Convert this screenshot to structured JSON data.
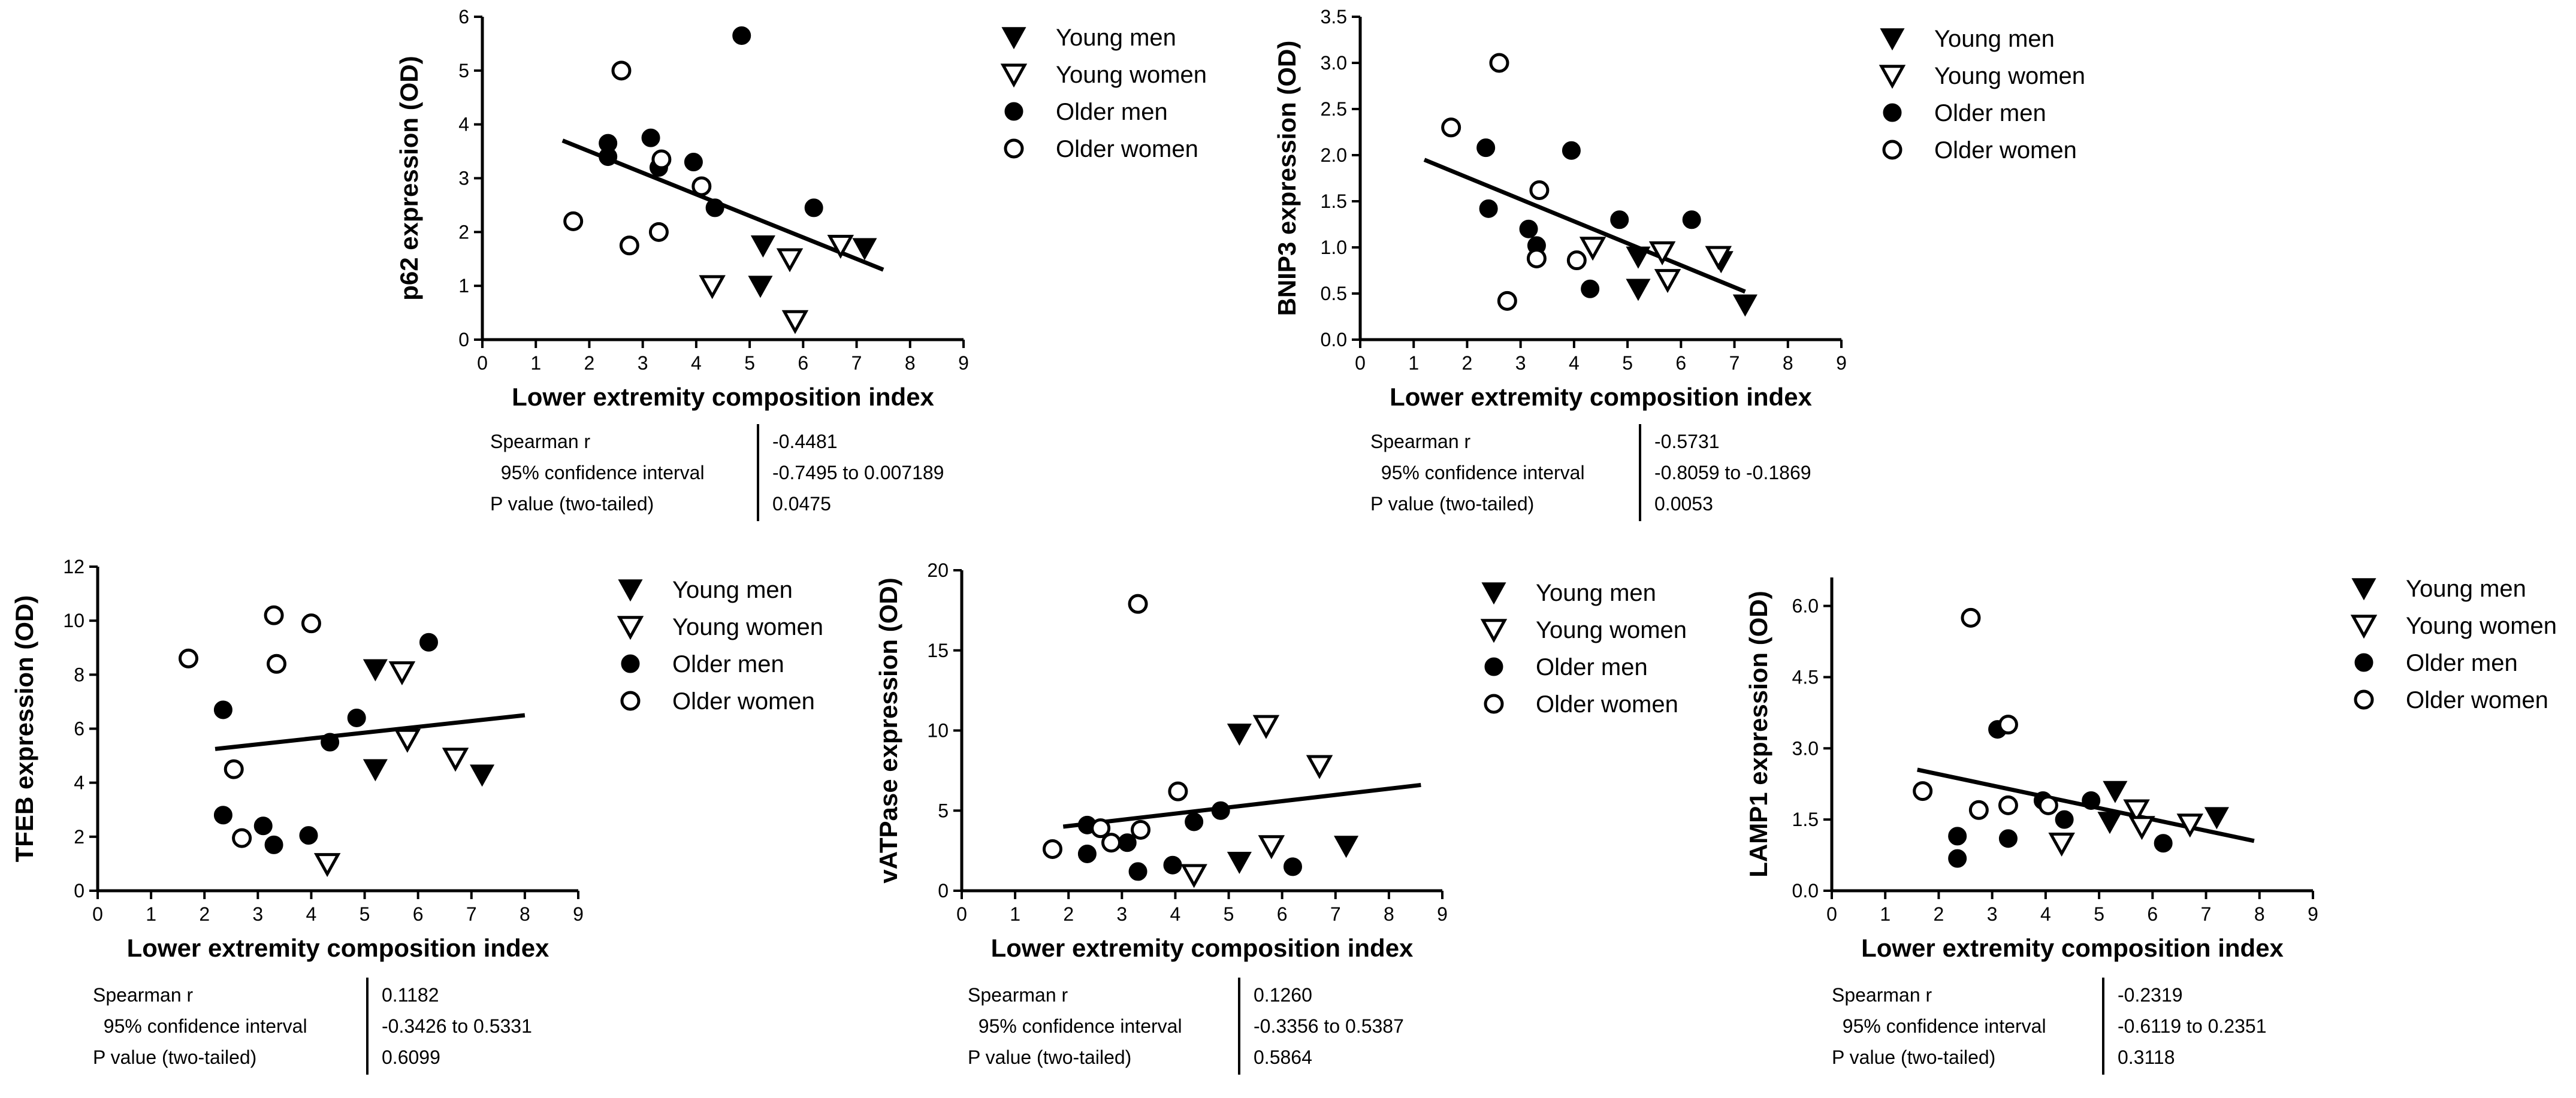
{
  "chart_data": [
    {
      "type": "scatter",
      "title": "",
      "xlabel": "Lower extremity composition index",
      "ylabel": "p62 expression (OD)",
      "xlim": [
        0,
        9
      ],
      "ylim": [
        0,
        6
      ],
      "x_ticks": [
        "0",
        "1",
        "2",
        "3",
        "4",
        "5",
        "6",
        "7",
        "8",
        "9"
      ],
      "y_ticks": [
        "0",
        "1",
        "2",
        "3",
        "4",
        "5",
        "6"
      ],
      "series": [
        {
          "name": "Young men",
          "marker": "triangle-down-filled",
          "points": [
            [
              5.25,
              1.75
            ],
            [
              7.15,
              1.7
            ],
            [
              5.2,
              1.0
            ]
          ]
        },
        {
          "name": "Young women",
          "marker": "triangle-down-open",
          "points": [
            [
              6.7,
              1.75
            ],
            [
              5.75,
              1.5
            ],
            [
              4.3,
              1.0
            ],
            [
              5.85,
              0.35
            ]
          ]
        },
        {
          "name": "Older men",
          "marker": "circle-filled",
          "points": [
            [
              4.85,
              5.65
            ],
            [
              2.35,
              3.65
            ],
            [
              2.35,
              3.4
            ],
            [
              3.15,
              3.75
            ],
            [
              3.3,
              3.2
            ],
            [
              3.95,
              3.3
            ],
            [
              4.35,
              2.45
            ],
            [
              6.2,
              2.45
            ]
          ]
        },
        {
          "name": "Older women",
          "marker": "circle-open",
          "points": [
            [
              2.6,
              5.0
            ],
            [
              3.35,
              3.35
            ],
            [
              4.1,
              2.85
            ],
            [
              1.7,
              2.2
            ],
            [
              2.75,
              1.75
            ],
            [
              3.3,
              2.0
            ]
          ]
        }
      ],
      "regression": {
        "x": [
          1.5,
          7.5
        ],
        "y": [
          3.7,
          1.3
        ]
      },
      "legend": [
        "Young men",
        "Young women",
        "Older men",
        "Older women"
      ],
      "legend_position": "right",
      "stats": [
        {
          "label": "Spearman r",
          "value": "-0.4481"
        },
        {
          "label": "  95% confidence interval",
          "value": "-0.7495 to 0.007189"
        },
        {
          "label": "P value (two-tailed)",
          "value": "0.0475"
        }
      ]
    },
    {
      "type": "scatter",
      "title": "",
      "xlabel": "Lower extremity composition index",
      "ylabel": "BNIP3 expression (OD)",
      "xlim": [
        0,
        9
      ],
      "ylim": [
        0,
        3.5
      ],
      "x_ticks": [
        "0",
        "1",
        "2",
        "3",
        "4",
        "5",
        "6",
        "7",
        "8",
        "9"
      ],
      "y_ticks": [
        "0.0",
        "0.5",
        "1.0",
        "1.5",
        "2.0",
        "2.5",
        "3.0",
        "3.5"
      ],
      "series": [
        {
          "name": "Young men",
          "marker": "triangle-down-filled",
          "points": [
            [
              5.2,
              0.9
            ],
            [
              5.2,
              0.55
            ],
            [
              6.75,
              0.85
            ],
            [
              7.2,
              0.38
            ]
          ]
        },
        {
          "name": "Young women",
          "marker": "triangle-down-open",
          "points": [
            [
              4.35,
              1.0
            ],
            [
              5.65,
              0.95
            ],
            [
              5.75,
              0.65
            ],
            [
              6.7,
              0.9
            ]
          ]
        },
        {
          "name": "Older men",
          "marker": "circle-filled",
          "points": [
            [
              2.35,
              2.08
            ],
            [
              3.95,
              2.05
            ],
            [
              2.4,
              1.42
            ],
            [
              3.15,
              1.2
            ],
            [
              3.3,
              1.02
            ],
            [
              4.3,
              0.55
            ],
            [
              4.85,
              1.3
            ],
            [
              6.2,
              1.3
            ]
          ]
        },
        {
          "name": "Older women",
          "marker": "circle-open",
          "points": [
            [
              2.6,
              3.0
            ],
            [
              1.7,
              2.3
            ],
            [
              3.35,
              1.62
            ],
            [
              3.3,
              0.88
            ],
            [
              4.05,
              0.86
            ],
            [
              2.75,
              0.42
            ]
          ]
        }
      ],
      "regression": {
        "x": [
          1.2,
          7.2
        ],
        "y": [
          1.95,
          0.52
        ]
      },
      "legend": [
        "Young men",
        "Young women",
        "Older men",
        "Older women"
      ],
      "legend_position": "right",
      "stats": [
        {
          "label": "Spearman r",
          "value": "-0.5731"
        },
        {
          "label": "  95% confidence interval",
          "value": "-0.8059 to -0.1869"
        },
        {
          "label": "P value (two-tailed)",
          "value": "0.0053"
        }
      ]
    },
    {
      "type": "scatter",
      "title": "",
      "xlabel": "Lower extremity composition index",
      "ylabel": "TFEB expression (OD)",
      "xlim": [
        0,
        9
      ],
      "ylim": [
        0,
        12
      ],
      "x_ticks": [
        "0",
        "1",
        "2",
        "3",
        "4",
        "5",
        "6",
        "7",
        "8",
        "9"
      ],
      "y_ticks": [
        "0",
        "2",
        "4",
        "6",
        "8",
        "10",
        "12"
      ],
      "series": [
        {
          "name": "Young men",
          "marker": "triangle-down-filled",
          "points": [
            [
              5.2,
              8.2
            ],
            [
              5.2,
              4.5
            ],
            [
              7.2,
              4.3
            ]
          ]
        },
        {
          "name": "Young women",
          "marker": "triangle-down-open",
          "points": [
            [
              5.7,
              8.1
            ],
            [
              5.8,
              5.6
            ],
            [
              6.7,
              4.9
            ],
            [
              4.3,
              1.0
            ]
          ]
        },
        {
          "name": "Older men",
          "marker": "circle-filled",
          "points": [
            [
              2.35,
              6.7
            ],
            [
              4.85,
              6.4
            ],
            [
              6.2,
              9.2
            ],
            [
              4.35,
              5.5
            ],
            [
              2.35,
              2.8
            ],
            [
              3.1,
              2.4
            ],
            [
              3.3,
              1.7
            ],
            [
              3.95,
              2.05
            ]
          ]
        },
        {
          "name": "Older women",
          "marker": "circle-open",
          "points": [
            [
              1.7,
              8.6
            ],
            [
              3.3,
              10.2
            ],
            [
              4.0,
              9.9
            ],
            [
              3.35,
              8.4
            ],
            [
              2.55,
              4.5
            ],
            [
              2.7,
              1.95
            ]
          ]
        }
      ],
      "regression": {
        "x": [
          2.2,
          8.0
        ],
        "y": [
          5.25,
          6.5
        ]
      },
      "legend": [
        "Young men",
        "Young women",
        "Older men",
        "Older women"
      ],
      "legend_position": "right",
      "stats": [
        {
          "label": "Spearman r",
          "value": "0.1182"
        },
        {
          "label": "  95% confidence interval",
          "value": "-0.3426 to 0.5331"
        },
        {
          "label": "P value (two-tailed)",
          "value": "0.6099"
        }
      ]
    },
    {
      "type": "scatter",
      "title": "",
      "xlabel": "Lower extremity composition index",
      "ylabel": "vATPase expression (OD)",
      "xlim": [
        0,
        9
      ],
      "ylim": [
        0,
        20
      ],
      "x_ticks": [
        "0",
        "1",
        "2",
        "3",
        "4",
        "5",
        "6",
        "7",
        "8",
        "9"
      ],
      "y_ticks": [
        "0",
        "5",
        "10",
        "15",
        "20"
      ],
      "series": [
        {
          "name": "Young men",
          "marker": "triangle-down-filled",
          "points": [
            [
              5.2,
              9.8
            ],
            [
              5.2,
              1.8
            ],
            [
              7.2,
              2.8
            ]
          ]
        },
        {
          "name": "Young women",
          "marker": "triangle-down-open",
          "points": [
            [
              5.7,
              10.3
            ],
            [
              6.7,
              7.8
            ],
            [
              5.8,
              2.8
            ],
            [
              4.35,
              1.0
            ]
          ]
        },
        {
          "name": "Older men",
          "marker": "circle-filled",
          "points": [
            [
              2.35,
              4.1
            ],
            [
              2.35,
              2.3
            ],
            [
              3.1,
              3.0
            ],
            [
              3.3,
              1.2
            ],
            [
              3.95,
              1.6
            ],
            [
              4.35,
              4.3
            ],
            [
              4.85,
              5.0
            ],
            [
              6.2,
              1.5
            ]
          ]
        },
        {
          "name": "Older women",
          "marker": "circle-open",
          "points": [
            [
              3.3,
              17.9
            ],
            [
              4.05,
              6.2
            ],
            [
              1.7,
              2.6
            ],
            [
              2.6,
              3.9
            ],
            [
              2.8,
              3.0
            ],
            [
              3.35,
              3.8
            ]
          ]
        }
      ],
      "regression": {
        "x": [
          1.9,
          8.6
        ],
        "y": [
          4.0,
          6.6
        ]
      },
      "legend": [
        "Young men",
        "Young women",
        "Older men",
        "Older women"
      ],
      "legend_position": "right",
      "stats": [
        {
          "label": "Spearman r",
          "value": "0.1260"
        },
        {
          "label": "  95% confidence interval",
          "value": "-0.3356 to 0.5387"
        },
        {
          "label": "P value (two-tailed)",
          "value": "0.5864"
        }
      ]
    },
    {
      "type": "scatter",
      "title": "",
      "xlabel": "Lower extremity composition index",
      "ylabel": "LAMP1 expression (OD)",
      "xlim": [
        0,
        9
      ],
      "ylim": [
        0,
        6.6
      ],
      "x_ticks": [
        "0",
        "1",
        "2",
        "3",
        "4",
        "5",
        "6",
        "7",
        "8",
        "9"
      ],
      "y_ticks": [
        "0.0",
        "1.5",
        "3.0",
        "4.5",
        "6.0"
      ],
      "series": [
        {
          "name": "Young men",
          "marker": "triangle-down-filled",
          "points": [
            [
              5.3,
              2.1
            ],
            [
              5.2,
              1.45
            ],
            [
              7.2,
              1.55
            ]
          ]
        },
        {
          "name": "Young women",
          "marker": "triangle-down-open",
          "points": [
            [
              5.7,
              1.7
            ],
            [
              5.8,
              1.35
            ],
            [
              6.7,
              1.4
            ],
            [
              4.3,
              1.0
            ]
          ]
        },
        {
          "name": "Older men",
          "marker": "circle-filled",
          "points": [
            [
              3.1,
              3.4
            ],
            [
              3.95,
              1.9
            ],
            [
              4.85,
              1.9
            ],
            [
              4.35,
              1.5
            ],
            [
              2.35,
              1.15
            ],
            [
              3.3,
              1.1
            ],
            [
              6.2,
              1.0
            ],
            [
              2.35,
              0.68
            ]
          ]
        },
        {
          "name": "Older women",
          "marker": "circle-open",
          "points": [
            [
              2.6,
              5.75
            ],
            [
              3.3,
              3.5
            ],
            [
              1.7,
              2.1
            ],
            [
              2.75,
              1.7
            ],
            [
              3.3,
              1.8
            ],
            [
              4.05,
              1.8
            ]
          ]
        }
      ],
      "regression": {
        "x": [
          1.6,
          7.9
        ],
        "y": [
          2.55,
          1.05
        ]
      },
      "legend": [
        "Young men",
        "Young women",
        "Older men",
        "Older women"
      ],
      "legend_position": "right",
      "stats": [
        {
          "label": "Spearman r",
          "value": "-0.2319"
        },
        {
          "label": "  95% confidence interval",
          "value": "-0.6119 to 0.2351"
        },
        {
          "label": "P value (two-tailed)",
          "value": "0.3118"
        }
      ]
    }
  ]
}
